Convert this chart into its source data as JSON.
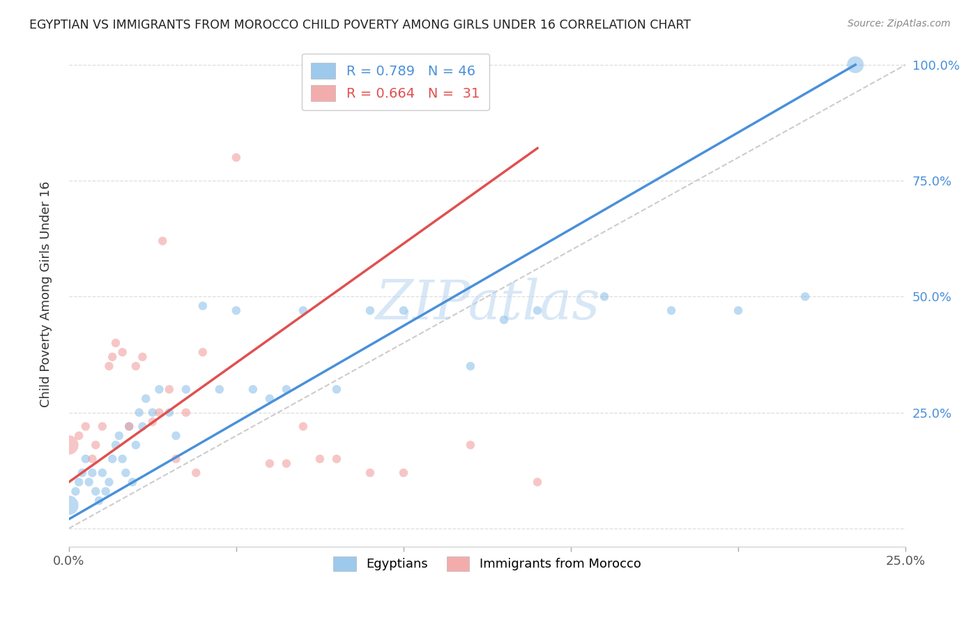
{
  "title": "EGYPTIAN VS IMMIGRANTS FROM MOROCCO CHILD POVERTY AMONG GIRLS UNDER 16 CORRELATION CHART",
  "source": "Source: ZipAtlas.com",
  "ylabel": "Child Poverty Among Girls Under 16",
  "xlim": [
    0.0,
    0.25
  ],
  "ylim": [
    -0.04,
    1.05
  ],
  "legend_entry1": "R = 0.789   N = 46",
  "legend_entry2": "R = 0.664   N =  31",
  "legend_color1": "#85bce8",
  "legend_color2": "#f09898",
  "watermark": "ZIPatlas",
  "group1_color": "#85bce8",
  "group2_color": "#f09898",
  "trendline1_color": "#4a90d9",
  "trendline2_color": "#e05050",
  "ref_line_color": "#cccccc",
  "background_color": "#ffffff",
  "gridline_color": "#dddddd",
  "blue_scatter_x": [
    0.0,
    0.002,
    0.003,
    0.004,
    0.005,
    0.006,
    0.007,
    0.008,
    0.009,
    0.01,
    0.011,
    0.012,
    0.013,
    0.014,
    0.015,
    0.016,
    0.017,
    0.018,
    0.019,
    0.02,
    0.021,
    0.022,
    0.023,
    0.025,
    0.027,
    0.03,
    0.032,
    0.035,
    0.04,
    0.045,
    0.05,
    0.055,
    0.06,
    0.065,
    0.07,
    0.08,
    0.09,
    0.1,
    0.12,
    0.13,
    0.14,
    0.16,
    0.18,
    0.2,
    0.22,
    0.235
  ],
  "blue_scatter_y": [
    0.05,
    0.08,
    0.1,
    0.12,
    0.15,
    0.1,
    0.12,
    0.08,
    0.06,
    0.12,
    0.08,
    0.1,
    0.15,
    0.18,
    0.2,
    0.15,
    0.12,
    0.22,
    0.1,
    0.18,
    0.25,
    0.22,
    0.28,
    0.25,
    0.3,
    0.25,
    0.2,
    0.3,
    0.48,
    0.3,
    0.47,
    0.3,
    0.28,
    0.3,
    0.47,
    0.3,
    0.47,
    0.47,
    0.35,
    0.45,
    0.47,
    0.5,
    0.47,
    0.47,
    0.5,
    1.0
  ],
  "blue_scatter_sizes": [
    400,
    80,
    80,
    80,
    80,
    80,
    80,
    80,
    80,
    80,
    80,
    80,
    80,
    80,
    80,
    80,
    80,
    80,
    80,
    80,
    80,
    80,
    80,
    80,
    80,
    80,
    80,
    80,
    80,
    80,
    80,
    80,
    80,
    80,
    80,
    80,
    80,
    80,
    80,
    80,
    80,
    80,
    80,
    80,
    80,
    300
  ],
  "blue_trendline_x": [
    0.0,
    0.235
  ],
  "blue_trendline_y": [
    0.02,
    1.0
  ],
  "pink_scatter_x": [
    0.0,
    0.003,
    0.005,
    0.007,
    0.008,
    0.01,
    0.012,
    0.013,
    0.014,
    0.016,
    0.018,
    0.02,
    0.022,
    0.025,
    0.027,
    0.028,
    0.03,
    0.032,
    0.035,
    0.038,
    0.04,
    0.05,
    0.06,
    0.065,
    0.07,
    0.075,
    0.08,
    0.09,
    0.1,
    0.12,
    0.14
  ],
  "pink_scatter_y": [
    0.18,
    0.2,
    0.22,
    0.15,
    0.18,
    0.22,
    0.35,
    0.37,
    0.4,
    0.38,
    0.22,
    0.35,
    0.37,
    0.23,
    0.25,
    0.62,
    0.3,
    0.15,
    0.25,
    0.12,
    0.38,
    0.8,
    0.14,
    0.14,
    0.22,
    0.15,
    0.15,
    0.12,
    0.12,
    0.18,
    0.1
  ],
  "pink_scatter_sizes": [
    400,
    80,
    80,
    80,
    80,
    80,
    80,
    80,
    80,
    80,
    80,
    80,
    80,
    80,
    80,
    80,
    80,
    80,
    80,
    80,
    80,
    80,
    80,
    80,
    80,
    80,
    80,
    80,
    80,
    80,
    80
  ],
  "pink_trendline_x": [
    0.0,
    0.14
  ],
  "pink_trendline_y": [
    0.1,
    0.82
  ]
}
